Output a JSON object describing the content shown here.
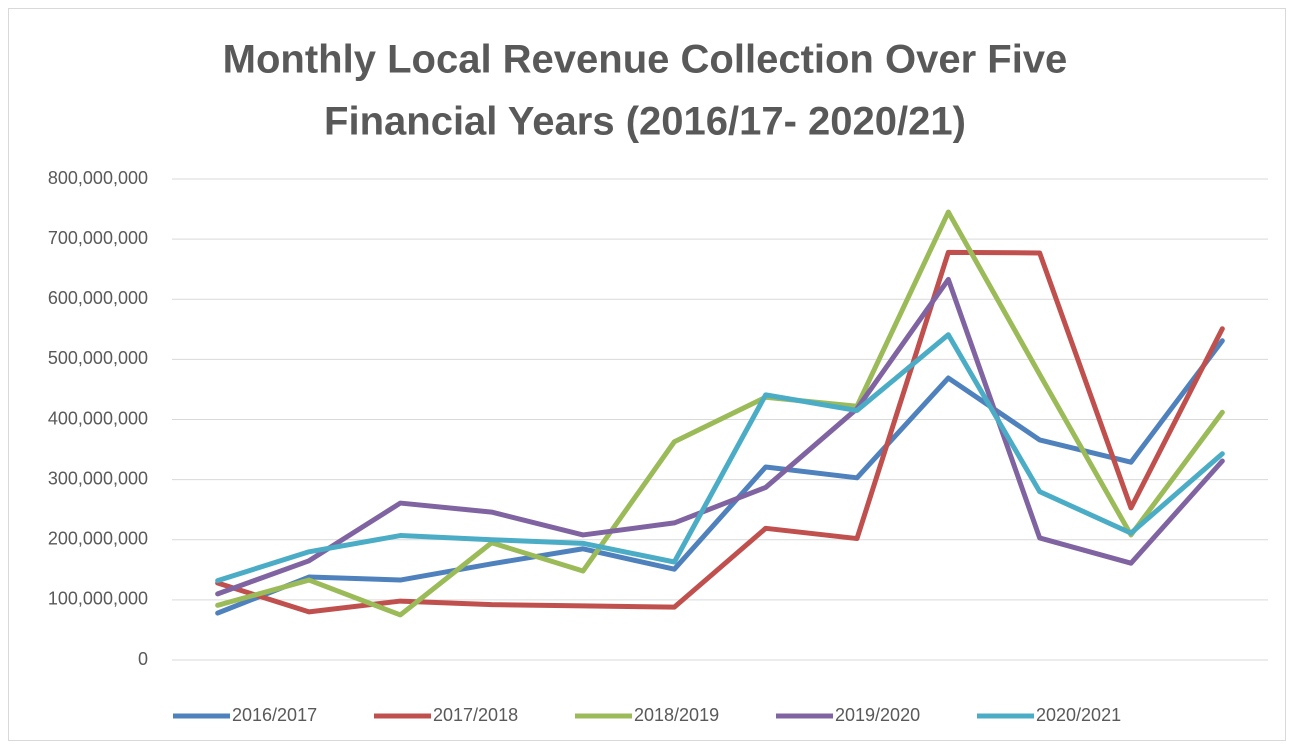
{
  "chart_data": {
    "type": "line",
    "title": [
      "Monthly Local Revenue Collection Over Five",
      "Financial Years (2016/17- 2020/21)"
    ],
    "categories": [
      null,
      null,
      null,
      null,
      null,
      null,
      null,
      null,
      null,
      null,
      null,
      null
    ],
    "series": [
      {
        "name": "2016/2017",
        "color": "#4f81bd",
        "values": [
          78000000,
          138000000,
          133000000,
          160000000,
          185000000,
          151000000,
          321000000,
          303000000,
          469000000,
          366000000,
          329000000,
          531000000
        ]
      },
      {
        "name": "2017/2018",
        "color": "#c0504d",
        "values": [
          128000000,
          80000000,
          98000000,
          92000000,
          90000000,
          88000000,
          219000000,
          202000000,
          678000000,
          677000000,
          253000000,
          551000000
        ]
      },
      {
        "name": "2018/2019",
        "color": "#9bbb59",
        "values": [
          91000000,
          133000000,
          75000000,
          195000000,
          148000000,
          363000000,
          437000000,
          422000000,
          745000000,
          475000000,
          208000000,
          412000000
        ]
      },
      {
        "name": "2019/2020",
        "color": "#8064a2",
        "values": [
          110000000,
          165000000,
          261000000,
          246000000,
          208000000,
          228000000,
          287000000,
          418000000,
          633000000,
          203000000,
          161000000,
          331000000
        ]
      },
      {
        "name": "2020/2021",
        "color": "#4bacc6",
        "values": [
          132000000,
          180000000,
          207000000,
          200000000,
          194000000,
          163000000,
          441000000,
          415000000,
          541000000,
          280000000,
          211000000,
          343000000
        ]
      }
    ],
    "ylim": [
      0,
      800000000
    ],
    "yticks": [
      0,
      {
        "value": 100000000,
        "label": "100,000,000"
      },
      {
        "value": 200000000,
        "label": "200,000,000"
      },
      {
        "value": 300000000,
        "label": "300,000,000"
      },
      {
        "value": 400000000,
        "label": "400,000,000"
      },
      {
        "value": 500000000,
        "label": "500,000,000"
      },
      {
        "value": 600000000,
        "label": "600,000,000"
      },
      {
        "value": 700000000,
        "label": "700,000,000"
      },
      {
        "value": 800000000,
        "label": "800,000,000"
      }
    ],
    "grid": true,
    "legend": "bottom"
  }
}
